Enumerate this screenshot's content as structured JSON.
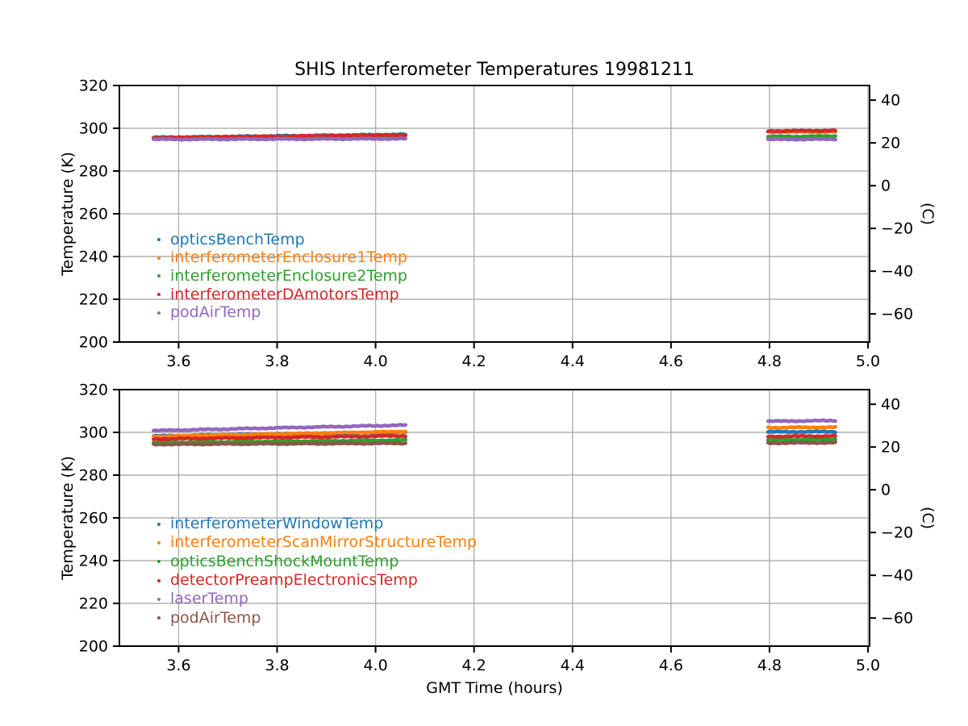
{
  "figure": {
    "background": "#ffffff",
    "grid_color": "#b0b0b0",
    "frame_color": "#000000",
    "grid": true
  },
  "chart_data": [
    {
      "type": "scatter",
      "title": "SHIS Interferometer Temperatures 19981211",
      "xlabel": "",
      "ylabel": "Temperature (K)",
      "ylabel_right": "(C)",
      "xlim": [
        3.4797,
        5.0033
      ],
      "ylim": [
        200,
        320
      ],
      "grid": true,
      "legend_position": "lower left inside plot",
      "xticks": {
        "values": [
          3.6,
          3.8,
          4.0,
          4.2,
          4.4,
          4.6,
          4.8,
          5.0
        ],
        "labels": [
          "3.6",
          "3.8",
          "4.0",
          "4.2",
          "4.4",
          "4.6",
          "4.8",
          "5.0"
        ]
      },
      "yticks_left": {
        "values": [
          200,
          220,
          240,
          260,
          280,
          300,
          320
        ],
        "labels": [
          "200",
          "220",
          "240",
          "260",
          "280",
          "300",
          "320"
        ]
      },
      "yticks_right": {
        "values_c": [
          40,
          20,
          0,
          -20,
          -40,
          -60
        ],
        "labels": [
          "40",
          "20",
          "0",
          "−20",
          "−40",
          "−60"
        ],
        "kelvin_offset": 273.15
      },
      "series": [
        {
          "name": "opticsBenchTemp",
          "color": "#1f77b4",
          "segments": [
            {
              "x": [
                3.549,
                4.061
              ],
              "y": [
                295.7,
                297.1
              ]
            },
            {
              "x": [
                4.797,
                4.934
              ],
              "y": [
                298.5,
                298.6
              ]
            }
          ]
        },
        {
          "name": "interferometerEnclosure1Temp",
          "color": "#ff7f0e",
          "segments": [
            {
              "x": [
                3.549,
                4.061
              ],
              "y": [
                295.4,
                296.7
              ]
            },
            {
              "x": [
                4.797,
                4.934
              ],
              "y": [
                298.3,
                298.4
              ]
            }
          ]
        },
        {
          "name": "interferometerEnclosure2Temp",
          "color": "#2ca02c",
          "segments": [
            {
              "x": [
                3.549,
                4.061
              ],
              "y": [
                295.3,
                296.5
              ]
            },
            {
              "x": [
                4.797,
                4.934
              ],
              "y": [
                296.1,
                296.3
              ]
            }
          ]
        },
        {
          "name": "interferometerDAmotorsTemp",
          "color": "#d62728",
          "segments": [
            {
              "x": [
                3.549,
                4.061
              ],
              "y": [
                295.5,
                296.9
              ]
            },
            {
              "x": [
                4.797,
                4.934
              ],
              "y": [
                298.7,
                298.9
              ]
            }
          ]
        },
        {
          "name": "podAirTemp",
          "color": "#9467bd",
          "segments": [
            {
              "x": [
                3.549,
                4.061
              ],
              "y": [
                294.8,
                295.1
              ]
            },
            {
              "x": [
                4.797,
                4.934
              ],
              "y": [
                294.8,
                294.9
              ]
            }
          ]
        }
      ]
    },
    {
      "type": "scatter",
      "title": "",
      "xlabel": "GMT Time (hours)",
      "ylabel": "Temperature (K)",
      "ylabel_right": "(C)",
      "xlim": [
        3.4797,
        5.0033
      ],
      "ylim": [
        200,
        320
      ],
      "grid": true,
      "legend_position": "lower left inside plot",
      "xticks": {
        "values": [
          3.6,
          3.8,
          4.0,
          4.2,
          4.4,
          4.6,
          4.8,
          5.0
        ],
        "labels": [
          "3.6",
          "3.8",
          "4.0",
          "4.2",
          "4.4",
          "4.6",
          "4.8",
          "5.0"
        ]
      },
      "yticks_left": {
        "values": [
          200,
          220,
          240,
          260,
          280,
          300,
          320
        ],
        "labels": [
          "200",
          "220",
          "240",
          "260",
          "280",
          "300",
          "320"
        ]
      },
      "yticks_right": {
        "values_c": [
          40,
          20,
          0,
          -20,
          -40,
          -60
        ],
        "labels": [
          "40",
          "20",
          "0",
          "−20",
          "−40",
          "−60"
        ],
        "kelvin_offset": 273.15
      },
      "series": [
        {
          "name": "interferometerWindowTemp",
          "color": "#1f77b4",
          "segments": [
            {
              "x": [
                3.549,
                4.061
              ],
              "y": [
                298.3,
                300.1
              ]
            },
            {
              "x": [
                4.797,
                4.934
              ],
              "y": [
                300.2,
                300.3
              ]
            }
          ]
        },
        {
          "name": "interferometerScanMirrorStructureTemp",
          "color": "#ff7f0e",
          "segments": [
            {
              "x": [
                3.549,
                4.061
              ],
              "y": [
                298.1,
                300.4
              ]
            },
            {
              "x": [
                4.797,
                4.934
              ],
              "y": [
                302.2,
                302.4
              ]
            }
          ]
        },
        {
          "name": "opticsBenchShockMountTemp",
          "color": "#2ca02c",
          "segments": [
            {
              "x": [
                3.549,
                4.061
              ],
              "y": [
                295.2,
                296.4
              ]
            },
            {
              "x": [
                4.797,
                4.934
              ],
              "y": [
                296.5,
                296.7
              ]
            }
          ]
        },
        {
          "name": "detectorPreampElectronicsTemp",
          "color": "#d62728",
          "segments": [
            {
              "x": [
                3.549,
                4.061
              ],
              "y": [
                296.9,
                298.4
              ]
            },
            {
              "x": [
                4.797,
                4.934
              ],
              "y": [
                298.1,
                298.3
              ]
            }
          ]
        },
        {
          "name": "laserTemp",
          "color": "#9467bd",
          "segments": [
            {
              "x": [
                3.549,
                4.061
              ],
              "y": [
                300.8,
                303.4
              ]
            },
            {
              "x": [
                4.797,
                4.934
              ],
              "y": [
                305.2,
                305.5
              ]
            }
          ]
        },
        {
          "name": "podAirTemp",
          "color": "#8c564b",
          "segments": [
            {
              "x": [
                3.549,
                4.061
              ],
              "y": [
                294.4,
                294.9
              ]
            },
            {
              "x": [
                4.797,
                4.934
              ],
              "y": [
                295.0,
                295.2
              ]
            }
          ]
        }
      ]
    }
  ]
}
